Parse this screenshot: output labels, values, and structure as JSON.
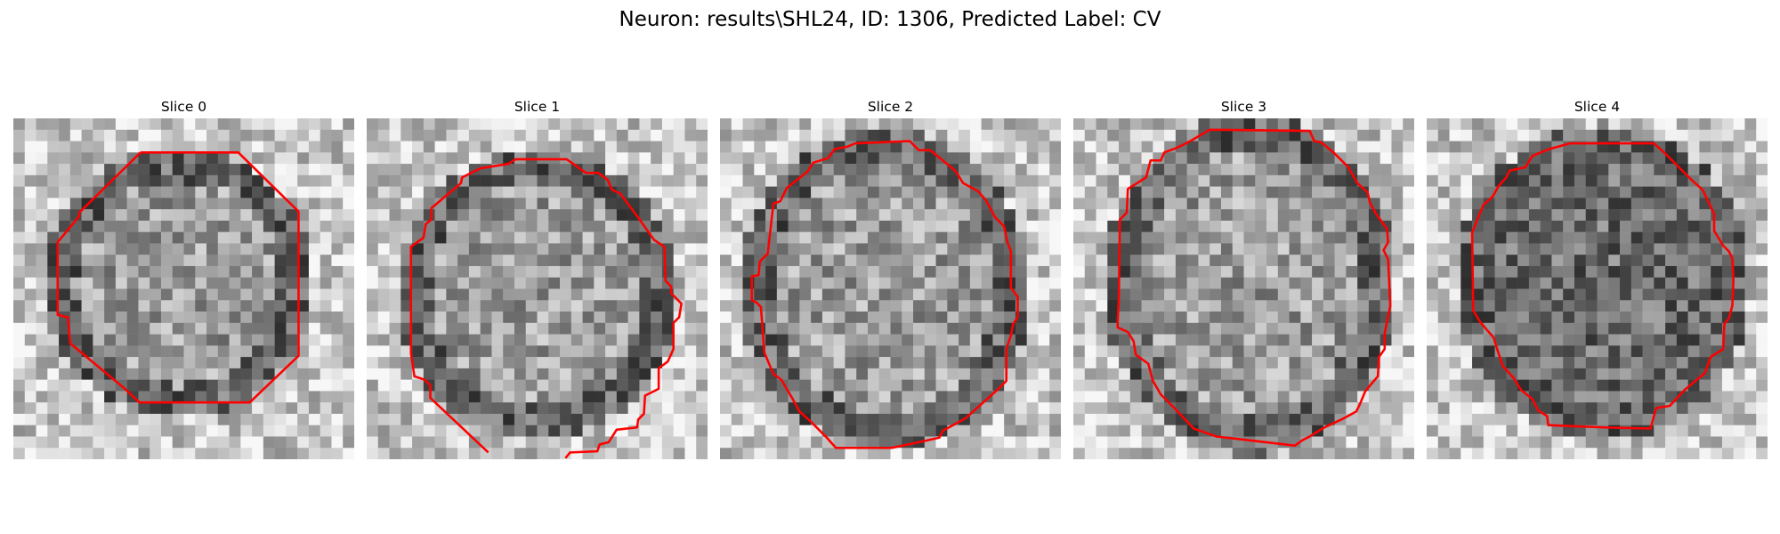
{
  "figure": {
    "title": "Neuron: results\\SHL24, ID: 1306, Predicted Label: CV"
  },
  "contour_color": "#ff0000",
  "slices": [
    {
      "title": "Slice 0"
    },
    {
      "title": "Slice 1"
    },
    {
      "title": "Slice 2"
    },
    {
      "title": "Slice 3"
    },
    {
      "title": "Slice 4"
    }
  ]
}
